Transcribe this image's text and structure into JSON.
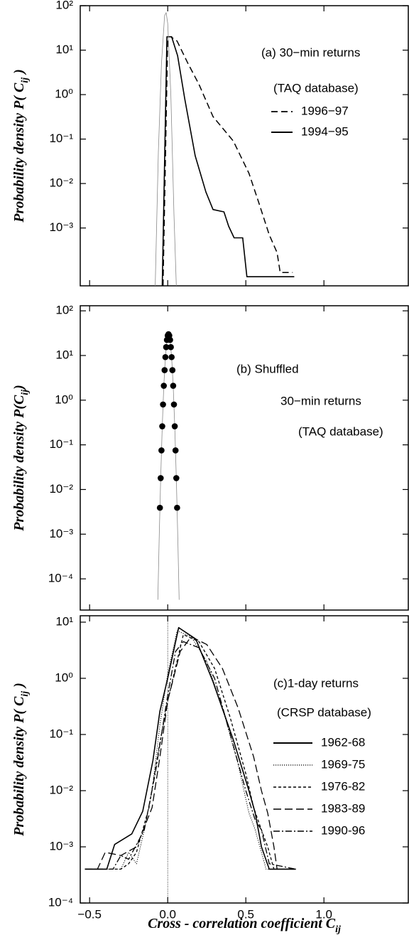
{
  "chart_data": [
    {
      "type": "line",
      "log_y": true,
      "annotations": [
        "(a) 30−min returns",
        "(TAQ database)"
      ],
      "ylabel": "Probability density P( C",
      "ylabel_sub": "ij",
      "ylabel_end": " )",
      "xlim": [
        -0.56,
        1.54
      ],
      "xticks": [
        -0.5,
        0,
        0.5,
        1.0
      ],
      "ylim": [
        5e-05,
        100
      ],
      "yticks": [
        {
          "value": 100,
          "label": "10²"
        },
        {
          "value": 10,
          "label": "10¹"
        },
        {
          "value": 1,
          "label": "10⁰"
        },
        {
          "value": 0.1,
          "label": "10⁻¹"
        },
        {
          "value": 0.01,
          "label": "10⁻²"
        },
        {
          "value": 0.001,
          "label": "10⁻³"
        }
      ],
      "series": [
        {
          "name": "1996−97",
          "color": "#000000",
          "dash": "dashed",
          "x": [
            -0.03,
            0.0,
            0.02,
            0.06,
            0.13,
            0.2,
            0.29,
            0.42,
            0.52,
            0.58,
            0.65,
            0.7,
            0.72,
            0.8
          ],
          "values": [
            5e-05,
            20,
            20,
            16,
            5,
            1.7,
            0.32,
            0.09,
            0.017,
            0.004,
            0.0007,
            0.00028,
            0.0001,
            0.0001
          ]
        },
        {
          "name": "1994−95",
          "color": "#000000",
          "dash": "solid",
          "x": [
            -0.035,
            -0.005,
            0.025,
            0.063,
            0.109,
            0.176,
            0.244,
            0.29,
            0.36,
            0.39,
            0.425,
            0.48,
            0.507,
            0.81
          ],
          "values": [
            5e-05,
            20,
            20,
            7.5,
            0.8,
            0.042,
            0.0065,
            0.0026,
            0.0023,
            0.0011,
            0.0006,
            0.0006,
            8e-05,
            8e-05
          ]
        },
        {
          "color": "#888888",
          "dash": "thin",
          "x": [
            -0.08,
            -0.06,
            -0.04,
            -0.02,
            -0.01,
            0.0,
            0.02,
            0.04,
            0.055
          ],
          "values": [
            5e-05,
            0.05,
            5,
            60,
            70,
            40,
            1,
            0.002,
            5e-05
          ]
        }
      ]
    },
    {
      "type": "scatter",
      "log_y": true,
      "annotations": [
        "(b) Shuffled",
        "30−min returns",
        "(TAQ database)"
      ],
      "ylabel": "Probability density P(C",
      "ylabel_sub": "ij",
      "ylabel_end": ")",
      "xlim": [
        -0.56,
        1.54
      ],
      "xticks": [
        -0.5,
        0,
        0.5,
        1.0
      ],
      "ylim": [
        2e-05,
        130
      ],
      "yticks": [
        {
          "value": 100,
          "label": "10²"
        },
        {
          "value": 10,
          "label": "10¹"
        },
        {
          "value": 1,
          "label": "10⁰"
        },
        {
          "value": 0.1,
          "label": "10⁻¹"
        },
        {
          "value": 0.01,
          "label": "10⁻²"
        },
        {
          "value": 0.001,
          "label": "10⁻³"
        },
        {
          "value": 0.0001,
          "label": "10⁻⁴"
        }
      ],
      "series": [
        {
          "color": "#888888",
          "dash": "thin",
          "x": [
            -0.063,
            -0.055,
            -0.045,
            -0.035,
            -0.025,
            -0.015,
            -0.005,
            0.005,
            0.015,
            0.025,
            0.035,
            0.045,
            0.055,
            0.065,
            0.073
          ],
          "values": [
            3.4e-05,
            0.00071,
            0.018,
            0.26,
            2.1,
            9.2,
            22.3,
            30,
            22.3,
            9.2,
            2.1,
            0.26,
            0.018,
            0.00071,
            3.4e-05
          ]
        },
        {
          "color": "#000000",
          "dash": "dots",
          "x": [
            -0.05,
            -0.045,
            -0.04,
            -0.035,
            -0.03,
            -0.025,
            -0.02,
            -0.015,
            -0.01,
            -0.005,
            0.0,
            0.005,
            0.01,
            0.015,
            0.02,
            0.025,
            0.03,
            0.035,
            0.04,
            0.045,
            0.05,
            0.055,
            0.06
          ],
          "values": [
            0.0039,
            0.018,
            0.075,
            0.26,
            0.8,
            2.1,
            4.7,
            9.2,
            15.4,
            22.3,
            27.9,
            30,
            27.9,
            22.3,
            15.4,
            9.2,
            4.7,
            2.1,
            0.8,
            0.26,
            0.075,
            0.018,
            0.0039
          ]
        }
      ]
    },
    {
      "type": "line",
      "log_y": true,
      "annotations": [
        "(c)1-day returns",
        "(CRSP database)"
      ],
      "ylabel": "Probability density P( C",
      "ylabel_sub": "ij",
      "ylabel_end": " )",
      "xlabel": "Cross - correlation coefficient C",
      "xlabel_sub": "ij",
      "xlim": [
        -0.56,
        1.54
      ],
      "xticks": [
        {
          "value": -0.5,
          "label": "−0.5"
        },
        {
          "value": 0,
          "label": "0.0"
        },
        {
          "value": 0.5,
          "label": "0.5"
        },
        {
          "value": 1.0,
          "label": "1.0"
        }
      ],
      "ylim": [
        0.0001,
        13
      ],
      "yticks": [
        {
          "value": 10,
          "label": "10¹"
        },
        {
          "value": 1,
          "label": "10⁰"
        },
        {
          "value": 0.1,
          "label": "10⁻¹"
        },
        {
          "value": 0.01,
          "label": "10⁻²"
        },
        {
          "value": 0.001,
          "label": "10⁻³"
        },
        {
          "value": 0.0001,
          "label": "10⁻⁴"
        }
      ],
      "vline": 0,
      "series": [
        {
          "name": "1962-68",
          "color": "#000000",
          "dash": "solid",
          "x": [
            -0.53,
            -0.39,
            -0.34,
            -0.23,
            -0.16,
            -0.095,
            -0.05,
            0,
            0.07,
            0.18,
            0.29,
            0.42,
            0.52,
            0.56,
            0.6,
            0.65,
            0.82
          ],
          "values": [
            0.0004,
            0.0004,
            0.0011,
            0.0017,
            0.0043,
            0.034,
            0.26,
            1,
            8,
            5,
            0.87,
            0.08,
            0.01,
            0.004,
            0.001,
            0.0004,
            0.0004
          ]
        },
        {
          "name": "1969-75",
          "color": "#000000",
          "dash": "dotted",
          "x": [
            -0.53,
            -0.3,
            -0.25,
            -0.2,
            -0.15,
            -0.1,
            -0.05,
            0,
            0.06,
            0.15,
            0.25,
            0.35,
            0.45,
            0.52,
            0.56,
            0.6,
            0.63,
            0.82
          ],
          "values": [
            0.0004,
            0.0004,
            0.0008,
            0.0005,
            0.002,
            0.01,
            0.15,
            1.2,
            7,
            5.5,
            2,
            0.3,
            0.03,
            0.004,
            0.002,
            0.0008,
            0.0004,
            0.0004
          ]
        },
        {
          "name": "1976-82",
          "color": "#000000",
          "dash": "short-dashed",
          "x": [
            -0.53,
            -0.3,
            -0.25,
            -0.2,
            -0.12,
            -0.06,
            0,
            0.1,
            0.2,
            0.3,
            0.4,
            0.5,
            0.55,
            0.6,
            0.64,
            0.68,
            0.82
          ],
          "values": [
            0.0004,
            0.0004,
            0.0005,
            0.0008,
            0.005,
            0.05,
            0.4,
            6,
            4.5,
            1.5,
            0.2,
            0.02,
            0.005,
            0.002,
            0.001,
            0.0004,
            0.0004
          ]
        },
        {
          "name": "1983-89",
          "color": "#000000",
          "dash": "long-dashed",
          "x": [
            -0.53,
            -0.45,
            -0.4,
            -0.3,
            -0.2,
            -0.1,
            -0.05,
            0,
            0.08,
            0.15,
            0.25,
            0.35,
            0.45,
            0.55,
            0.6,
            0.64,
            0.68,
            0.7,
            0.82
          ],
          "values": [
            0.0004,
            0.0004,
            0.0008,
            0.0007,
            0.001,
            0.005,
            0.04,
            0.4,
            3,
            5.5,
            4,
            1.5,
            0.3,
            0.04,
            0.01,
            0.004,
            0.001,
            0.0004,
            0.0004
          ]
        },
        {
          "name": "1990-96",
          "color": "#000000",
          "dash": "dash-dot",
          "x": [
            -0.53,
            -0.35,
            -0.3,
            -0.25,
            -0.15,
            -0.08,
            0,
            0.05,
            0.1,
            0.2,
            0.3,
            0.4,
            0.5,
            0.56,
            0.6,
            0.65,
            0.82
          ],
          "values": [
            0.0004,
            0.0004,
            0.0007,
            0.0006,
            0.002,
            0.02,
            0.5,
            3,
            4.5,
            3.5,
            1,
            0.1,
            0.01,
            0.003,
            0.002,
            0.0005,
            0.0004
          ]
        }
      ]
    }
  ]
}
